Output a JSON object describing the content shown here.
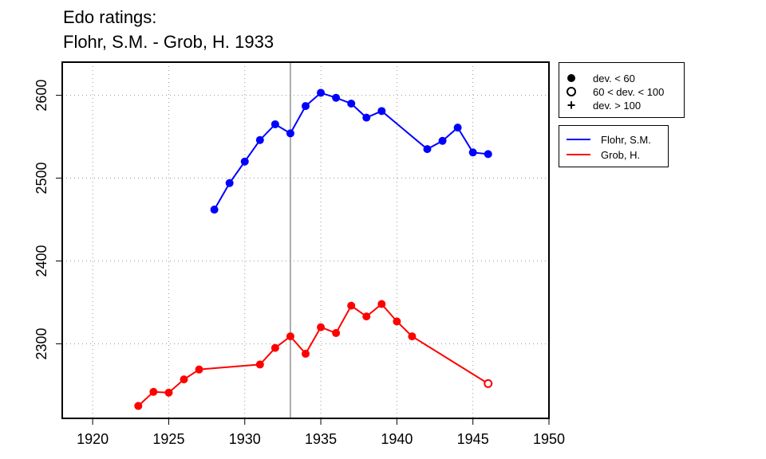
{
  "chart_data": {
    "type": "line",
    "title": "Edo ratings:",
    "subtitle": "Flohr, S.M. - Grob, H. 1933",
    "xlabel": "",
    "ylabel": "",
    "xlim": [
      1918,
      1950
    ],
    "ylim": [
      2210,
      2640
    ],
    "x_ticks": [
      1920,
      1925,
      1930,
      1935,
      1940,
      1945,
      1950
    ],
    "y_ticks": [
      2300,
      2400,
      2500,
      2600
    ],
    "grid": true,
    "vline_x": 1933,
    "series": [
      {
        "name": "Flohr, S.M.",
        "color": "#0000ff",
        "x": [
          1928,
          1929,
          1930,
          1931,
          1932,
          1933,
          1934,
          1935,
          1936,
          1937,
          1938,
          1939,
          1942,
          1943,
          1944,
          1945,
          1946
        ],
        "values": [
          2462,
          2494,
          2520,
          2546,
          2565,
          2554,
          2587,
          2603,
          2597,
          2590,
          2573,
          2581,
          2535,
          2545,
          2561,
          2531,
          2529
        ],
        "marker": [
          "dev < 60",
          "dev < 60",
          "dev < 60",
          "dev < 60",
          "dev < 60",
          "dev < 60",
          "dev < 60",
          "dev < 60",
          "dev < 60",
          "dev < 60",
          "dev < 60",
          "dev < 60",
          "dev < 60",
          "dev < 60",
          "dev < 60",
          "dev < 60",
          "dev < 60"
        ]
      },
      {
        "name": "Grob, H.",
        "color": "#ff0000",
        "x": [
          1923,
          1924,
          1925,
          1926,
          1927,
          1931,
          1932,
          1933,
          1934,
          1935,
          1936,
          1937,
          1938,
          1939,
          1940,
          1941,
          1946
        ],
        "values": [
          2225,
          2242,
          2241,
          2257,
          2269,
          2275,
          2295,
          2309,
          2288,
          2320,
          2313,
          2346,
          2333,
          2348,
          2327,
          2309,
          2252
        ],
        "marker": [
          "dev < 60",
          "dev < 60",
          "dev < 60",
          "dev < 60",
          "dev < 60",
          "dev < 60",
          "dev < 60",
          "dev < 60",
          "dev < 60",
          "dev < 60",
          "dev < 60",
          "dev < 60",
          "dev < 60",
          "dev < 60",
          "dev < 60",
          "dev < 60",
          "60 < dev < 100"
        ]
      }
    ],
    "marker_legend": [
      {
        "symbol": "filled-circle",
        "label": "dev. < 60"
      },
      {
        "symbol": "open-circle",
        "label": "60 < dev. < 100"
      },
      {
        "symbol": "plus",
        "label": "dev. > 100"
      }
    ],
    "legend_placement": "right"
  }
}
